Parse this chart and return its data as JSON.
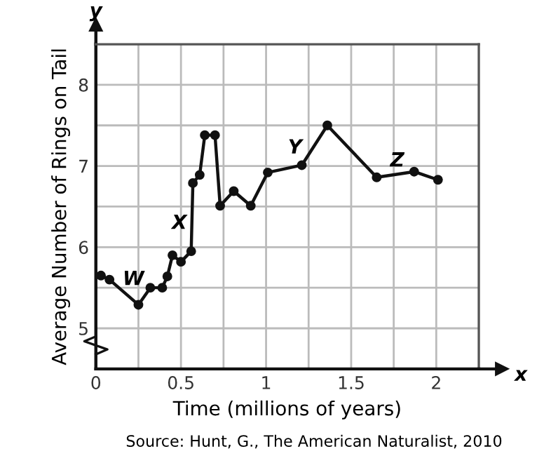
{
  "chart_data": {
    "type": "line",
    "xlabel": "Time (millions of years)",
    "ylabel": "Average Number of Rings on Tail",
    "x": [
      0.03,
      0.08,
      0.25,
      0.32,
      0.39,
      0.42,
      0.45,
      0.5,
      0.56,
      0.57,
      0.61,
      0.64,
      0.7,
      0.73,
      0.81,
      0.91,
      1.01,
      1.21,
      1.36,
      1.65,
      1.87,
      2.01
    ],
    "series": [
      {
        "color": "#111111",
        "values": [
          5.65,
          5.6,
          5.29,
          5.5,
          5.5,
          5.64,
          5.9,
          5.82,
          5.95,
          6.79,
          6.89,
          7.38,
          7.38,
          6.51,
          6.69,
          6.51,
          6.92,
          7.01,
          7.5,
          6.86,
          6.93,
          6.83
        ]
      }
    ],
    "xlim": [
      0,
      2.25
    ],
    "ylim": [
      4.5,
      8.5
    ],
    "xticks": [
      0,
      {
        "value": 0.25,
        "label": null
      },
      0.5,
      {
        "value": 0.75,
        "label": null
      },
      1,
      {
        "value": 1.25,
        "label": null
      },
      1.5,
      {
        "value": 1.75,
        "label": null
      },
      2
    ],
    "yticks": [
      5,
      {
        "value": 5.5,
        "label": null
      },
      6,
      {
        "value": 6.5,
        "label": null
      },
      7,
      {
        "value": 7.5,
        "label": null
      },
      8
    ],
    "grid": true,
    "marker": "circle",
    "line_style": "solid",
    "legend": false,
    "annotations": [
      "W",
      "X",
      "Y",
      "Z",
      "y",
      "x",
      "Source: Hunt, G., The American Naturalist, 2010"
    ]
  }
}
